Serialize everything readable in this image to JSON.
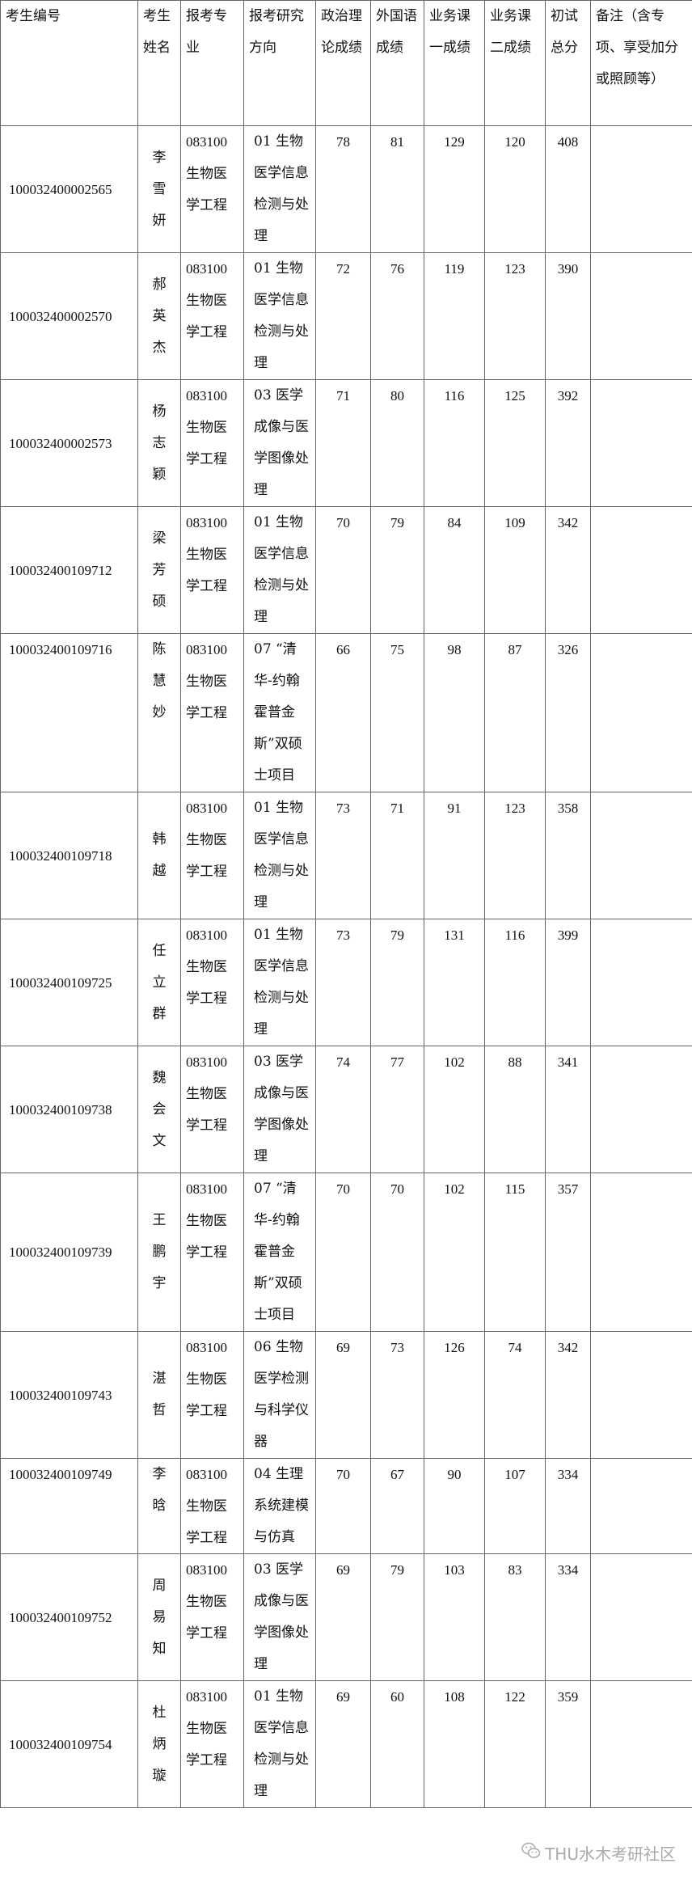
{
  "headers": [
    "考生编号",
    "考生姓名",
    "报考专业",
    "报考研究方向",
    "政治理论成绩",
    "外国语成绩",
    "业务课一成绩",
    "业务课二成绩",
    "初试总分",
    "备注（含专项、享受加分或照顾等）"
  ],
  "rows": [
    {
      "id": "100032400002565",
      "name": "李雪妍",
      "major": "083100生物医学工程",
      "direction": "01 生物医学信息检测与处理",
      "politics": "78",
      "language": "81",
      "course1": "129",
      "course2": "120",
      "total": "408",
      "note": ""
    },
    {
      "id": "100032400002570",
      "name": "郝英杰",
      "major": "083100生物医学工程",
      "direction": "01 生物医学信息检测与处理",
      "politics": "72",
      "language": "76",
      "course1": "119",
      "course2": "123",
      "total": "390",
      "note": ""
    },
    {
      "id": "100032400002573",
      "name": "杨志颖",
      "major": "083100生物医学工程",
      "direction": "03 医学成像与医学图像处理",
      "politics": "71",
      "language": "80",
      "course1": "116",
      "course2": "125",
      "total": "392",
      "note": ""
    },
    {
      "id": "100032400109712",
      "name": "梁芳硕",
      "major": "083100生物医学工程",
      "direction": "01 生物医学信息检测与处理",
      "politics": "70",
      "language": "79",
      "course1": "84",
      "course2": "109",
      "total": "342",
      "note": ""
    },
    {
      "id": "100032400109716",
      "name": "陈慧妙",
      "major": "083100生物医学工程",
      "direction": "07 “清华-约翰霍普金斯”双硕士项目",
      "politics": "66",
      "language": "75",
      "course1": "98",
      "course2": "87",
      "total": "326",
      "note": ""
    },
    {
      "id": "100032400109718",
      "name": "韩越",
      "major": "083100生物医学工程",
      "direction": "01 生物医学信息检测与处理",
      "politics": "73",
      "language": "71",
      "course1": "91",
      "course2": "123",
      "total": "358",
      "note": ""
    },
    {
      "id": "100032400109725",
      "name": "任立群",
      "major": "083100生物医学工程",
      "direction": "01 生物医学信息检测与处理",
      "politics": "73",
      "language": "79",
      "course1": "131",
      "course2": "116",
      "total": "399",
      "note": ""
    },
    {
      "id": "100032400109738",
      "name": "魏会文",
      "major": "083100生物医学工程",
      "direction": "03 医学成像与医学图像处理",
      "politics": "74",
      "language": "77",
      "course1": "102",
      "course2": "88",
      "total": "341",
      "note": ""
    },
    {
      "id": "100032400109739",
      "name": "王鹏宇",
      "major": "083100生物医学工程",
      "direction": "07 “清华-约翰霍普金斯”双硕士项目",
      "politics": "70",
      "language": "70",
      "course1": "102",
      "course2": "115",
      "total": "357",
      "note": ""
    },
    {
      "id": "100032400109743",
      "name": "湛哲",
      "major": "083100生物医学工程",
      "direction": "06 生物医学检测与科学仪器",
      "politics": "69",
      "language": "73",
      "course1": "126",
      "course2": "74",
      "total": "342",
      "note": ""
    },
    {
      "id": "100032400109749",
      "name": "李晗",
      "major": "083100生物医学工程",
      "direction": "04 生理系统建模与仿真",
      "politics": "70",
      "language": "67",
      "course1": "90",
      "course2": "107",
      "total": "334",
      "note": ""
    },
    {
      "id": "100032400109752",
      "name": "周易知",
      "major": "083100生物医学工程",
      "direction": "03 医学成像与医学图像处理",
      "politics": "69",
      "language": "79",
      "course1": "103",
      "course2": "83",
      "total": "334",
      "note": ""
    },
    {
      "id": "100032400109754",
      "name": "杜炳璇",
      "major": "083100生物医学工程",
      "direction": "01 生物医学信息检测与处理",
      "politics": "69",
      "language": "60",
      "course1": "108",
      "course2": "122",
      "total": "359",
      "note": ""
    }
  ],
  "watermark": {
    "text": "THU水木考研社区",
    "icon": "wechat-icon"
  }
}
